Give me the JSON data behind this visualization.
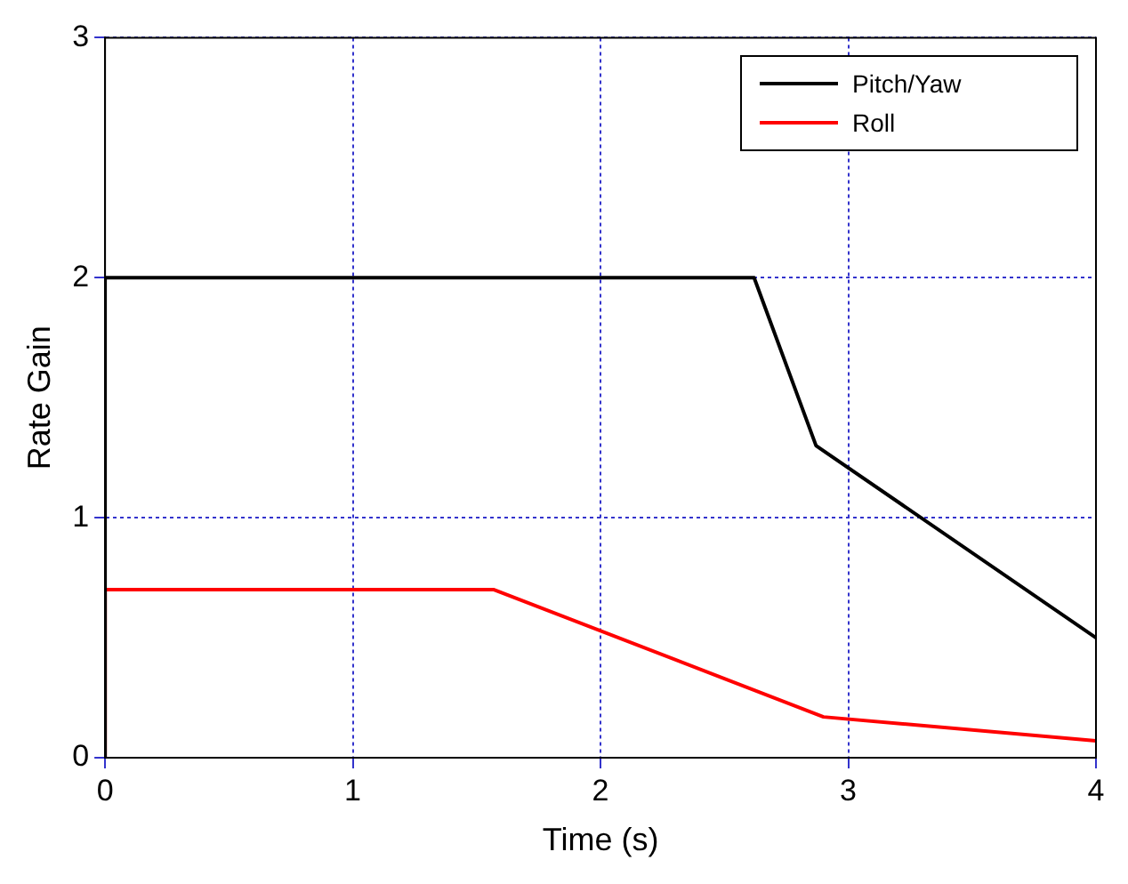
{
  "chart_data": {
    "type": "line",
    "xlabel": "Time (s)",
    "ylabel": "Rate Gain",
    "xlim": [
      0,
      4
    ],
    "ylim": [
      0,
      3
    ],
    "xticks": [
      0,
      1,
      2,
      3,
      4
    ],
    "yticks": [
      0,
      1,
      2,
      3
    ],
    "grid": true,
    "legend": "top right",
    "marker": "none",
    "line_style": "solid",
    "series": [
      {
        "name": "Pitch/Yaw",
        "color": "#000000",
        "x": [
          0,
          0,
          2.62,
          2.87,
          4
        ],
        "values": [
          0,
          2,
          2,
          1.3,
          0.5
        ]
      },
      {
        "name": "Roll",
        "color": "#ff0000",
        "x": [
          0,
          0,
          1.57,
          2.9,
          4
        ],
        "values": [
          0,
          0.7,
          0.7,
          0.17,
          0.07
        ]
      }
    ]
  }
}
